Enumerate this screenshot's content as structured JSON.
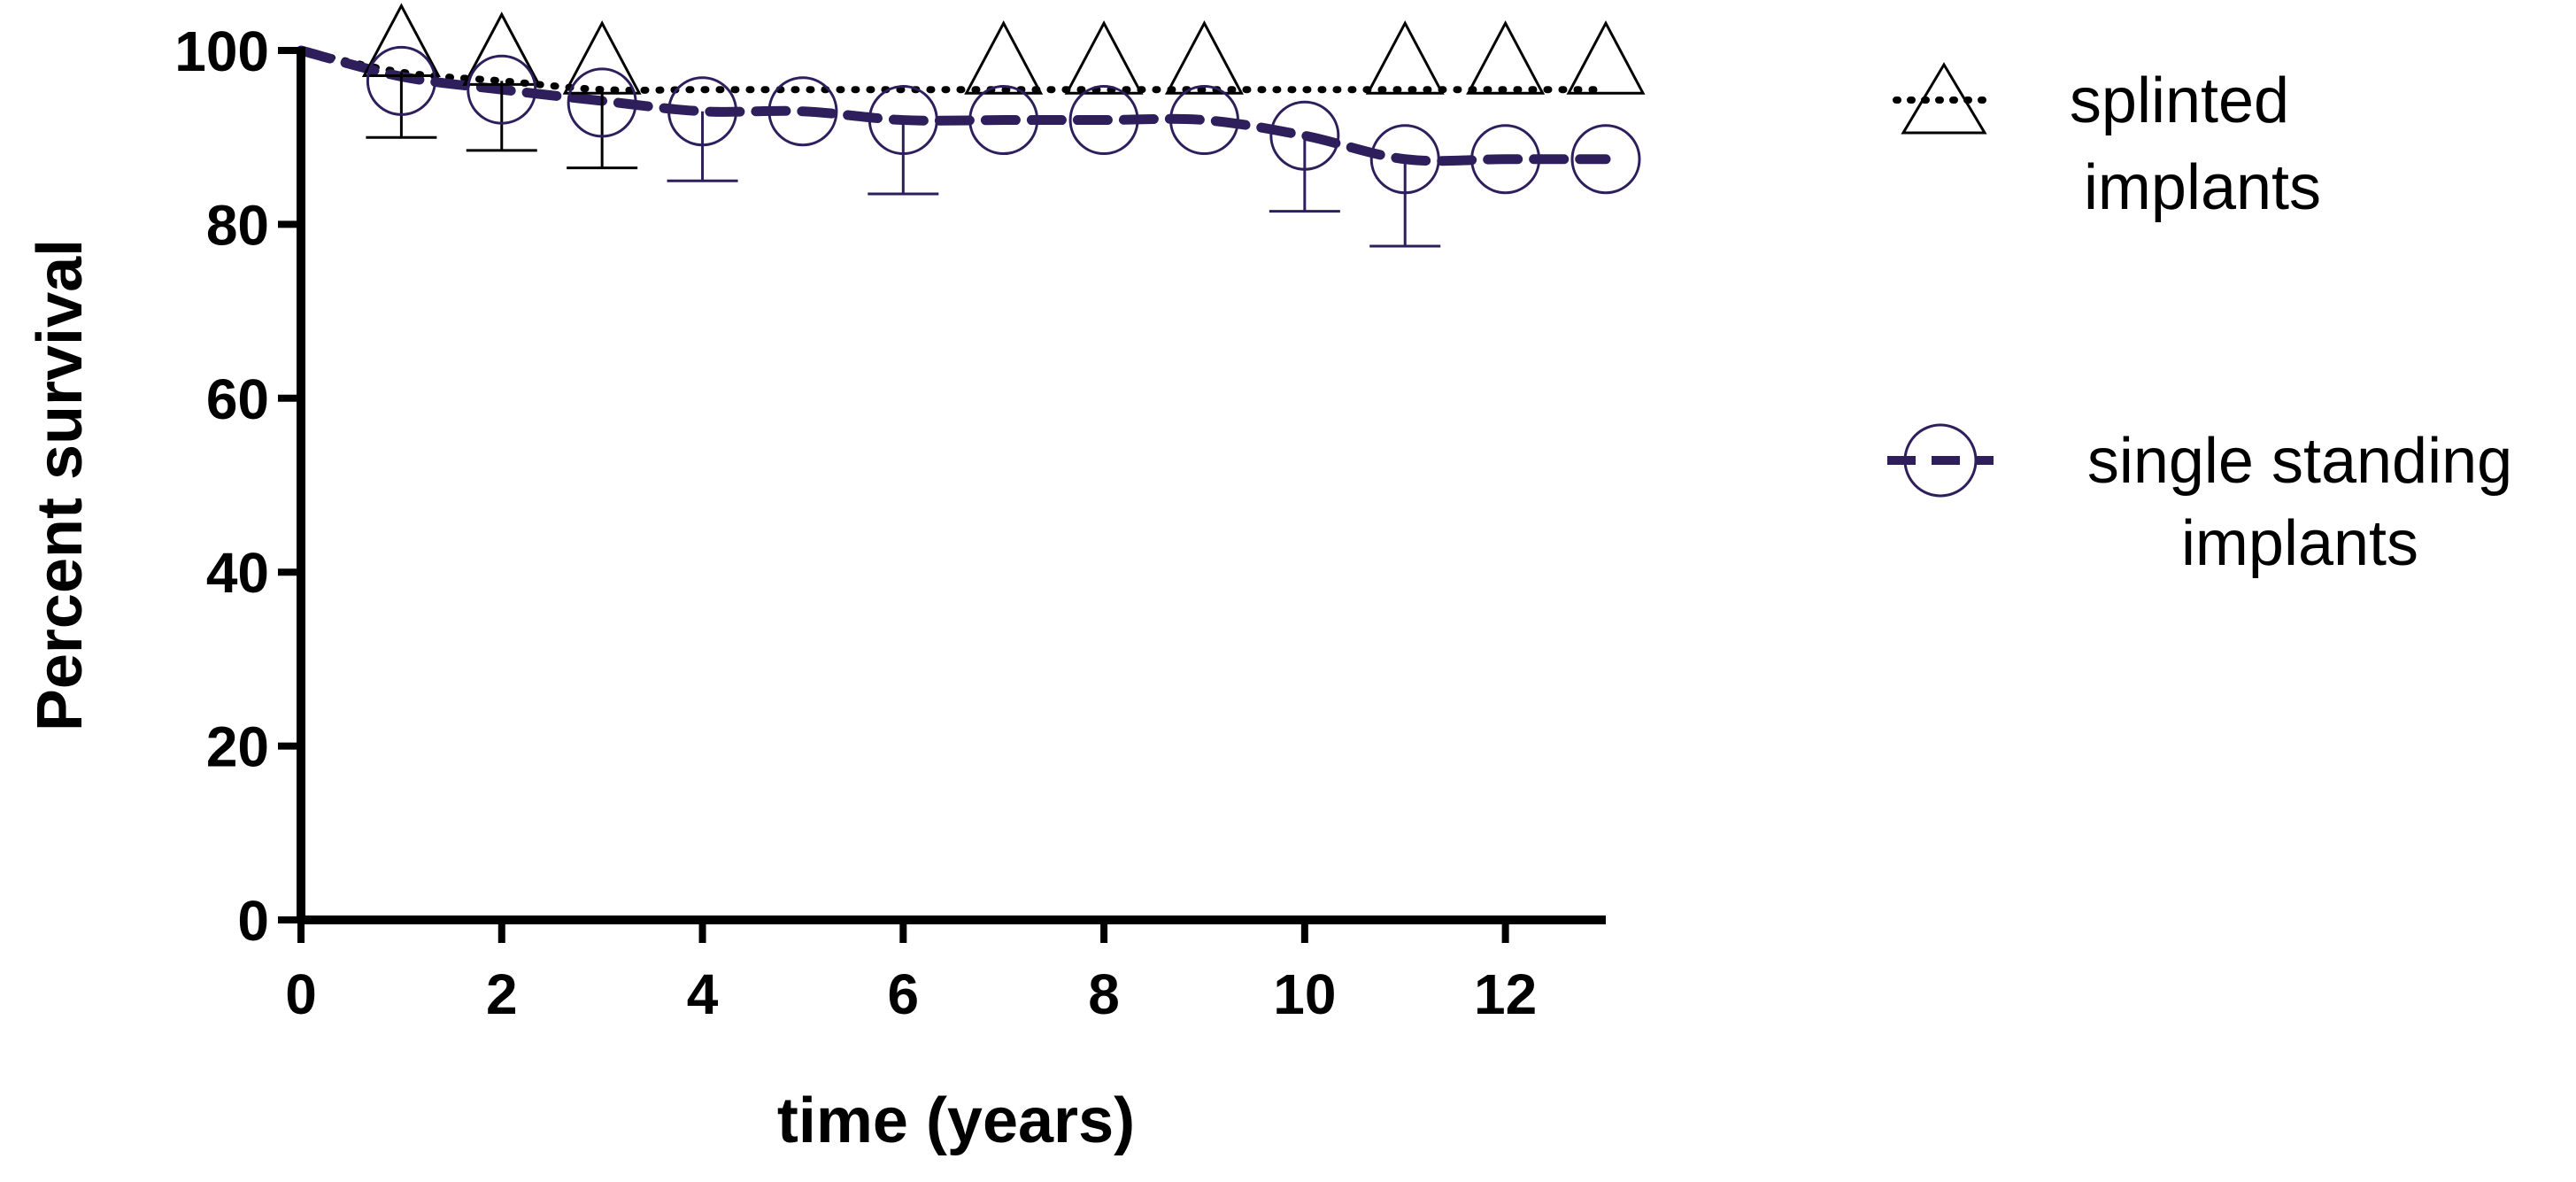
{
  "chart_data": {
    "type": "line",
    "title": "",
    "xlabel": "time (years)",
    "ylabel": "Percent survival",
    "xlim": [
      0,
      13
    ],
    "ylim": [
      0,
      100
    ],
    "xticks": [
      0,
      2,
      4,
      6,
      8,
      10,
      12
    ],
    "yticks": [
      0,
      20,
      40,
      60,
      80,
      100
    ],
    "grid": false,
    "legend_position": "right",
    "series": [
      {
        "name": "splinted implants",
        "legend_lines": [
          "splinted",
          "implants"
        ],
        "color": "#000000",
        "line_style": "dotted",
        "marker": "triangle",
        "curve": [
          [
            0,
            100
          ],
          [
            1,
            97.5
          ],
          [
            2,
            96.5
          ],
          [
            3,
            95.5
          ],
          [
            4,
            95.5
          ],
          [
            5,
            95.5
          ],
          [
            6,
            95.5
          ],
          [
            7,
            95.5
          ],
          [
            8,
            95.5
          ],
          [
            9,
            95.5
          ],
          [
            10,
            95.5
          ],
          [
            11,
            95.5
          ],
          [
            12,
            95.5
          ],
          [
            13,
            95.5
          ]
        ],
        "markers": [
          [
            1,
            97.5
          ],
          [
            2,
            96.5
          ],
          [
            3,
            95.5
          ],
          [
            7,
            95.5
          ],
          [
            8,
            95.5
          ],
          [
            9,
            95.5
          ],
          [
            11,
            95.5
          ],
          [
            12,
            95.5
          ],
          [
            13,
            95.5
          ]
        ],
        "error_lower": [
          [
            1,
            90
          ],
          [
            2,
            88.5
          ],
          [
            3,
            86.5
          ]
        ]
      },
      {
        "name": "single standing implants",
        "legend_lines": [
          "single standing",
          "implants"
        ],
        "color": "#2e1f5c",
        "line_style": "dashed",
        "marker": "circle",
        "curve": [
          [
            0,
            100
          ],
          [
            1,
            97
          ],
          [
            2,
            95.5
          ],
          [
            3,
            94.2
          ],
          [
            4,
            93
          ],
          [
            5,
            93
          ],
          [
            6,
            92
          ],
          [
            7,
            92
          ],
          [
            8,
            92
          ],
          [
            9,
            92
          ],
          [
            10,
            90.2
          ],
          [
            11,
            87.5
          ],
          [
            12,
            87.5
          ],
          [
            13,
            87.5
          ]
        ],
        "markers": [
          [
            1,
            96.5
          ],
          [
            2,
            95.5
          ],
          [
            3,
            94
          ],
          [
            4,
            93
          ],
          [
            5,
            93
          ],
          [
            6,
            92
          ],
          [
            7,
            92
          ],
          [
            8,
            92
          ],
          [
            9,
            92
          ],
          [
            10,
            90.2
          ],
          [
            11,
            87.5
          ],
          [
            12,
            87.5
          ],
          [
            13,
            87.5
          ]
        ],
        "error_lower": [
          [
            4,
            85
          ],
          [
            6,
            83.5
          ],
          [
            10,
            81.5
          ],
          [
            11,
            77.5
          ]
        ]
      }
    ]
  }
}
